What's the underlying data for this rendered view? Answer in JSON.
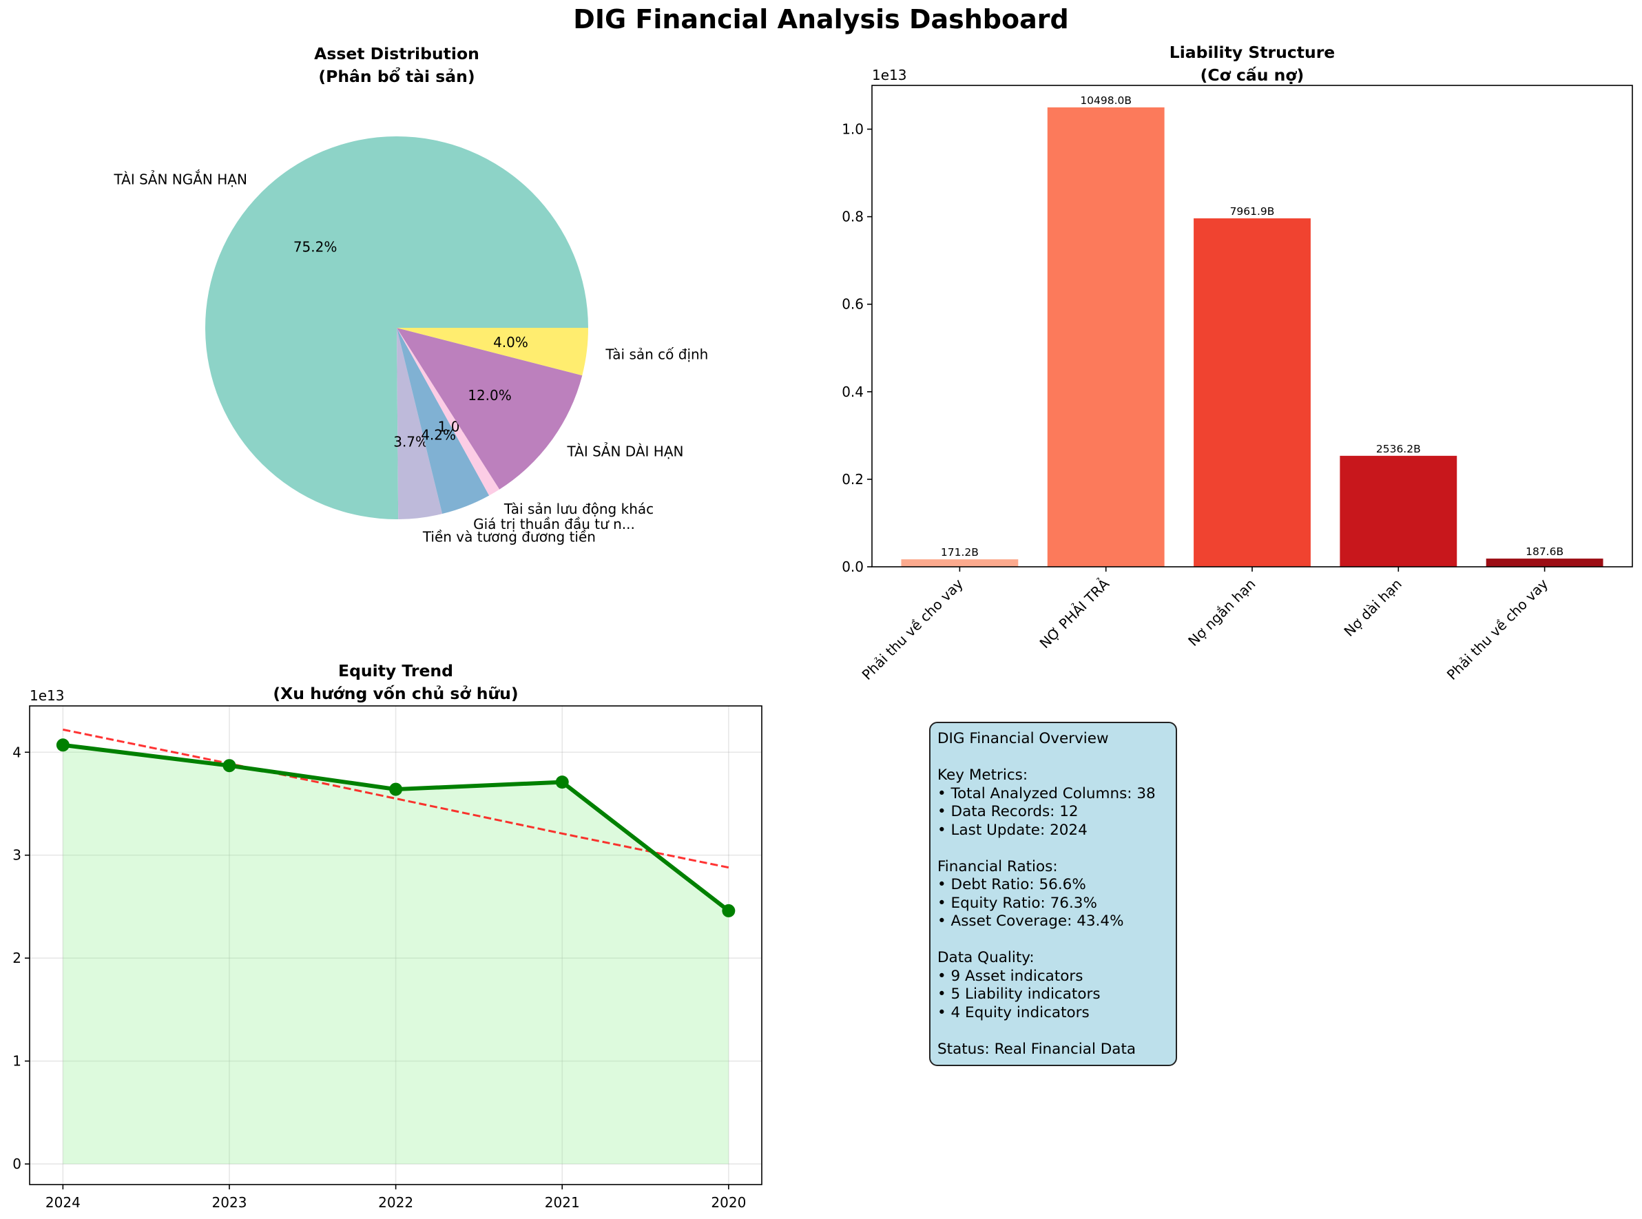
{
  "suptitle": "DIG Financial Analysis Dashboard",
  "colors": {
    "pie": [
      "#8dd3c7",
      "#bebada",
      "#80b1d3",
      "#fccde5",
      "#bc80bd",
      "#ffed6f"
    ],
    "bars": [
      "#fcaa8e",
      "#fc7a5b",
      "#f04330",
      "#c8171c",
      "#9c0d14"
    ],
    "equity_line": "#008000",
    "equity_fill": "#90ee90",
    "trend_line": "#ff0000",
    "overview_box": "#add8e6"
  },
  "chart_data": [
    {
      "type": "pie",
      "title": "Asset Distribution\n(Phân bổ tài sản)",
      "slices": [
        {
          "label": "TÀI SẢN NGẮN HẠN",
          "pct": "75.2%",
          "value": 75.2
        },
        {
          "label": "Tiền và tương đương tiền",
          "pct": "3.7%",
          "value": 3.7
        },
        {
          "label": "Giá trị thuần đầu tư n...",
          "pct": "4.2%",
          "value": 4.2
        },
        {
          "label": "Tài sản lưu động khác",
          "pct": "1.0%",
          "value": 1.0
        },
        {
          "label": "TÀI SẢN DÀI HẠN",
          "pct": "12.0%",
          "value": 12.0
        },
        {
          "label": "Tài sản cố định",
          "pct": "4.0%",
          "value": 4.0
        }
      ]
    },
    {
      "type": "bar",
      "title": "Liability Structure\n(Cơ cấu nợ)",
      "offset_text": "1e13",
      "categories": [
        "Phải thu về cho vay",
        "NỢ PHẢI TRẢ",
        "Nợ ngắn hạn",
        "Nợ dài hạn",
        "Phải thu về cho vay"
      ],
      "values": [
        0.01712,
        1.0498,
        0.79619,
        0.25362,
        0.01876
      ],
      "value_labels": [
        "171.2B",
        "10498.0B",
        "7961.9B",
        "2536.2B",
        "187.6B"
      ],
      "ylim": [
        0,
        1.1
      ],
      "yticks": [
        0.0,
        0.2,
        0.4,
        0.6,
        0.8,
        1.0
      ],
      "ytick_labels": [
        "0.0",
        "0.2",
        "0.4",
        "0.6",
        "0.8",
        "1.0"
      ]
    },
    {
      "type": "line",
      "title": "Equity Trend\n(Xu hướng vốn chủ sở hữu)",
      "offset_text": "1e13",
      "x": [
        "2024",
        "2023",
        "2022",
        "2021",
        "2020"
      ],
      "values": [
        4.07,
        3.87,
        3.64,
        3.71,
        2.46
      ],
      "trend": [
        4.22,
        3.89,
        3.55,
        3.21,
        2.88
      ],
      "ylim": [
        -0.2,
        4.45
      ],
      "yticks": [
        0,
        1,
        2,
        3,
        4
      ],
      "ytick_labels": [
        "0",
        "1",
        "2",
        "3",
        "4"
      ],
      "grid": true
    }
  ],
  "overview": {
    "lines": [
      "DIG Financial Overview",
      "",
      "Key Metrics:",
      "• Total Analyzed Columns: 38",
      "• Data Records: 12",
      "• Last Update: 2024",
      "",
      "Financial Ratios:",
      "• Debt Ratio: 56.6%",
      "• Equity Ratio: 76.3%",
      "• Asset Coverage: 43.4%",
      "",
      "Data Quality:",
      "• 9 Asset indicators",
      "• 5 Liability indicators",
      "• 4 Equity indicators",
      "",
      "Status: Real Financial Data"
    ]
  }
}
